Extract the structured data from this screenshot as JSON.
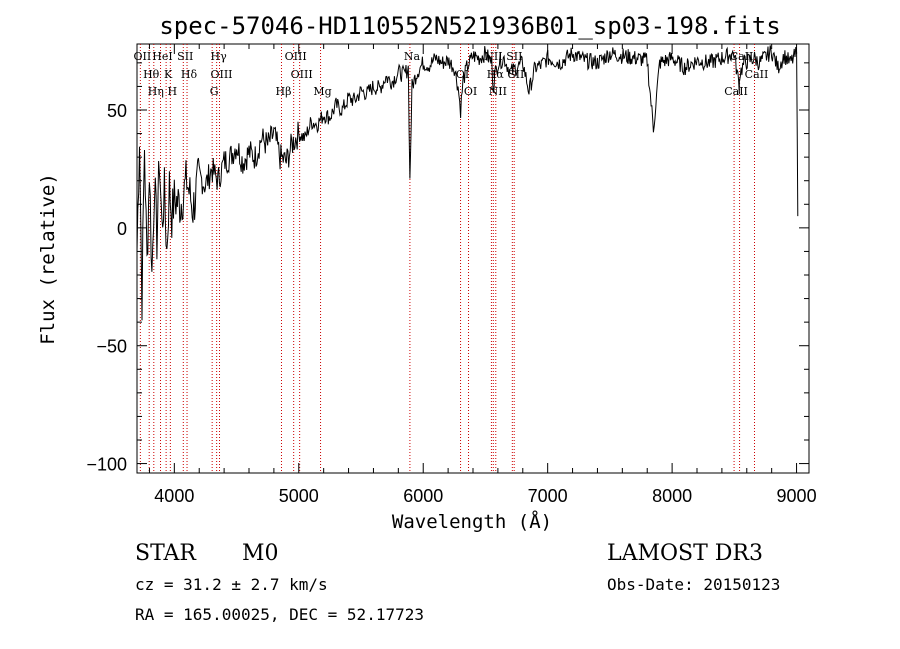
{
  "chart_data": {
    "type": "line",
    "title": "spec-57046-HD110552N521936B01_sp03-198.fits",
    "xlabel": "Wavelength (Å)",
    "ylabel": "Flux (relative)",
    "xlim": [
      3700,
      9100
    ],
    "ylim": [
      -104,
      78
    ],
    "xticks": [
      4000,
      5000,
      6000,
      7000,
      8000,
      9000
    ],
    "yticks": [
      -100,
      -50,
      0,
      50
    ],
    "series": [
      {
        "name": "spectrum",
        "x": [
          3700,
          3720,
          3740,
          3760,
          3780,
          3800,
          3820,
          3840,
          3860,
          3880,
          3900,
          3920,
          3940,
          3960,
          3980,
          4000,
          4050,
          4100,
          4150,
          4200,
          4250,
          4300,
          4350,
          4400,
          4450,
          4500,
          4550,
          4600,
          4650,
          4700,
          4750,
          4800,
          4850,
          4900,
          4950,
          5000,
          5050,
          5100,
          5150,
          5200,
          5250,
          5300,
          5350,
          5400,
          5450,
          5500,
          5550,
          5600,
          5650,
          5700,
          5750,
          5800,
          5850,
          5880,
          5893,
          5910,
          5950,
          6000,
          6050,
          6100,
          6150,
          6200,
          6250,
          6280,
          6300,
          6320,
          6350,
          6400,
          6450,
          6500,
          6550,
          6563,
          6580,
          6600,
          6650,
          6700,
          6750,
          6800,
          6850,
          6900,
          6950,
          7000,
          7100,
          7200,
          7300,
          7400,
          7500,
          7600,
          7700,
          7800,
          7850,
          7900,
          8000,
          8100,
          8200,
          8300,
          8400,
          8498,
          8540,
          8542,
          8580,
          8662,
          8700,
          8800,
          8850,
          8900,
          8950,
          9000,
          9010
        ],
        "values": [
          -10,
          40,
          -30,
          35,
          -15,
          25,
          -20,
          20,
          -5,
          30,
          0,
          15,
          -10,
          18,
          5,
          12,
          10,
          20,
          8,
          22,
          18,
          25,
          20,
          28,
          30,
          35,
          28,
          32,
          30,
          38,
          35,
          40,
          30,
          28,
          36,
          40,
          38,
          45,
          44,
          48,
          47,
          52,
          50,
          55,
          54,
          58,
          57,
          60,
          59,
          64,
          62,
          66,
          65,
          68,
          20,
          60,
          66,
          70,
          69,
          72,
          70,
          71,
          68,
          60,
          50,
          62,
          68,
          73,
          72,
          74,
          70,
          60,
          66,
          70,
          72,
          66,
          68,
          70,
          58,
          68,
          69,
          72,
          70,
          74,
          71,
          70,
          74,
          73,
          72,
          71,
          42,
          70,
          72,
          68,
          71,
          70,
          72,
          74,
          60,
          65,
          70,
          72,
          70,
          75,
          68,
          73,
          70,
          74,
          5
        ]
      }
    ],
    "lines": [
      {
        "name": "OII",
        "x": 3727
      },
      {
        "name": "Hθ",
        "x": 3798
      },
      {
        "name": "Hη",
        "x": 3835
      },
      {
        "name": "HeI",
        "x": 3889
      },
      {
        "name": "K",
        "x": 3934
      },
      {
        "name": "H",
        "x": 3968
      },
      {
        "name": "SII",
        "x": 4072
      },
      {
        "name": "Hδ",
        "x": 4102
      },
      {
        "name": "G",
        "x": 4304
      },
      {
        "name": "Hγ",
        "x": 4340
      },
      {
        "name": "OIII",
        "x": 4363
      },
      {
        "name": "Hβ",
        "x": 4861
      },
      {
        "name": "OIII",
        "x": 4959
      },
      {
        "name": "OIII",
        "x": 5007
      },
      {
        "name": "Mg",
        "x": 5175
      },
      {
        "name": "Na",
        "x": 5893
      },
      {
        "name": "OI",
        "x": 6300
      },
      {
        "name": "OI",
        "x": 6364
      },
      {
        "name": "NII",
        "x": 6548
      },
      {
        "name": "Hα",
        "x": 6563
      },
      {
        "name": "NII",
        "x": 6583
      },
      {
        "name": "SII",
        "x": 6716
      },
      {
        "name": "SII",
        "x": 6731
      },
      {
        "name": "CaII",
        "x": 8498
      },
      {
        "name": "CaII",
        "x": 8542
      },
      {
        "name": "CaII",
        "x": 8662
      }
    ]
  },
  "info": {
    "class_label": "STAR",
    "subclass_label": "M0",
    "survey": "LAMOST DR3",
    "cz": "cz = 31.2 ± 2.7 km/s",
    "obs_date": "Obs-Date: 20150123",
    "coords": "RA = 165.00025, DEC =  52.17723"
  }
}
